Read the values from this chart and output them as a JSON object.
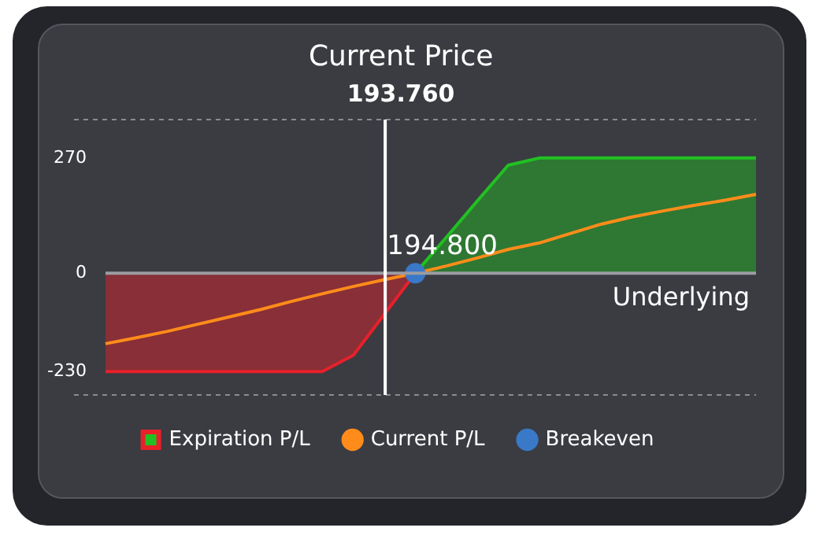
{
  "chart_data": {
    "type": "area",
    "xlabel": "Underlying",
    "categories": [
      null,
      null,
      null,
      null,
      null,
      null,
      null,
      null,
      null,
      null,
      null,
      null,
      null,
      null,
      null,
      null,
      null,
      null,
      null,
      null,
      null,
      null
    ],
    "ylim": [
      -285,
      360
    ],
    "yticks": [
      -230,
      0,
      270
    ],
    "tick_labels": "y",
    "legend": "bottom",
    "series": [
      {
        "name": "Expiration P/L",
        "values": [
          -230,
          -230,
          -230,
          -230,
          -230,
          -230,
          -230,
          -230,
          -192,
          -96,
          0,
          84,
          169,
          253,
          270,
          270,
          270,
          270,
          270,
          270,
          270,
          270
        ],
        "colors": [
          "#e8202a",
          "#e8202a",
          "#e8202a",
          "#e8202a",
          "#e8202a",
          "#e8202a",
          "#e8202a",
          "#e8202a",
          "#e8202a",
          "#e8202a",
          "#e8202a",
          "#22c022",
          "#22c022",
          "#22c022",
          "#22c022",
          "#22c022",
          "#22c022",
          "#22c022",
          "#22c022",
          "#22c022",
          "#22c022",
          "#22c022"
        ]
      },
      {
        "name": "Current P/L",
        "type": "line",
        "color": "#ff8c1a",
        "values": [
          -165,
          -151,
          -136,
          -119,
          -102,
          -85,
          -66,
          -48,
          -31,
          -15,
          0,
          17,
          36,
          56,
          71,
          93,
          115,
          132,
          146,
          159,
          171,
          185
        ]
      },
      {
        "name": "Breakeven",
        "type": "scatter",
        "color": "#3a78c8",
        "marker": "circle",
        "values": [
          null,
          null,
          null,
          null,
          null,
          null,
          null,
          null,
          null,
          null,
          0,
          null,
          null,
          null,
          null,
          null,
          null,
          null,
          null,
          null,
          null,
          null
        ]
      }
    ],
    "annotations": [
      "Current Price\n193.760",
      "194.800"
    ]
  }
}
